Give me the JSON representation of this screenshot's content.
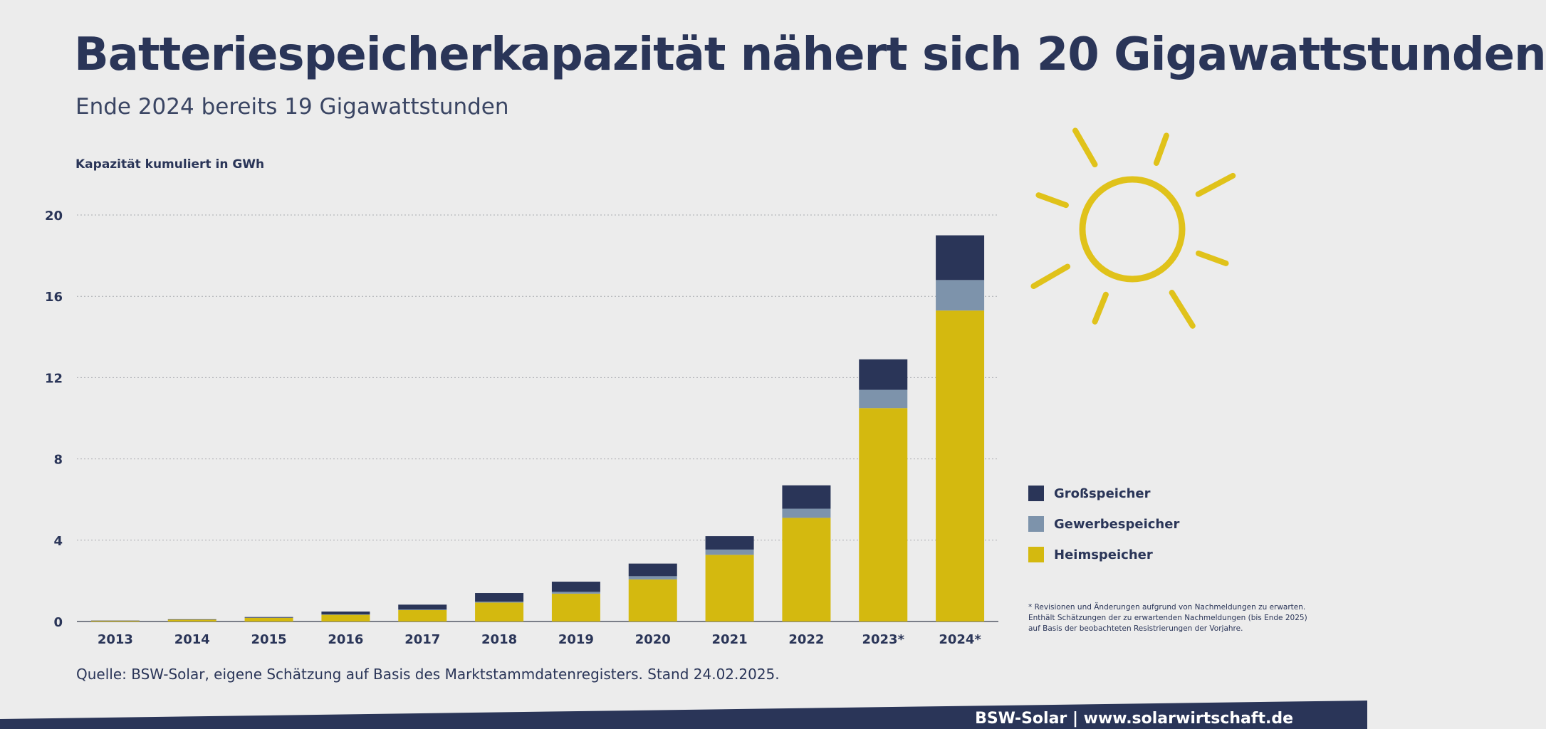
{
  "header": {
    "title": "Batteriespeicherkapazität nähert sich 20 Gigawattstunden",
    "subtitle": "Ende 2024 bereits 19 Gigawattstunden"
  },
  "source": "Quelle: BSW-Solar, eigene Schätzung auf Basis des Marktstammdatenregisters. Stand 24.02.2025.",
  "footer": "BSW-Solar | www.solarwirtschaft.de",
  "footnote": [
    "* Revisionen und Änderungen aufgrund von Nachmeldungen zu erwarten.",
    "Enthält Schätzungen der zu erwartenden Nachmeldungen (bis Ende 2025)",
    "auf Basis der beobachteten Resistrierungen der Vorjahre."
  ],
  "colors": {
    "background": "#ececec",
    "heim": "#d4b90f",
    "gewerbe": "#7d93ab",
    "gross": "#2a3558",
    "sun": "#e0c21a",
    "footer": "#2a3558"
  },
  "icons": [
    "sun-icon"
  ],
  "chart_data": {
    "type": "bar",
    "stacked": true,
    "title": "Batteriespeicherkapazität nähert sich 20 Gigawattstunden",
    "subtitle": "Ende 2024 bereits 19 Gigawattstunden",
    "ylabel": "Kapazität kumuliert in GWh",
    "xlabel": "",
    "ylim": [
      0,
      20
    ],
    "yticks": [
      0,
      4,
      8,
      12,
      16,
      20
    ],
    "grid": true,
    "legend_position": "right",
    "categories": [
      "2013",
      "2014",
      "2015",
      "2016",
      "2017",
      "2018",
      "2019",
      "2020",
      "2021",
      "2022",
      "2023*",
      "2024*"
    ],
    "series": [
      {
        "name": "Heimspeicher",
        "values": [
          0.04,
          0.09,
          0.18,
          0.33,
          0.56,
          0.93,
          1.37,
          2.07,
          3.28,
          5.1,
          10.5,
          15.3
        ]
      },
      {
        "name": "Gewerbespeicher",
        "values": [
          0.0,
          0.0,
          0.01,
          0.02,
          0.03,
          0.05,
          0.09,
          0.16,
          0.26,
          0.45,
          0.9,
          1.5
        ]
      },
      {
        "name": "Großspeicher",
        "values": [
          0.01,
          0.02,
          0.03,
          0.14,
          0.24,
          0.42,
          0.5,
          0.62,
          0.66,
          1.15,
          1.5,
          2.2
        ]
      }
    ],
    "legend": [
      "Großspeicher",
      "Gewerbespeicher",
      "Heimspeicher"
    ]
  }
}
